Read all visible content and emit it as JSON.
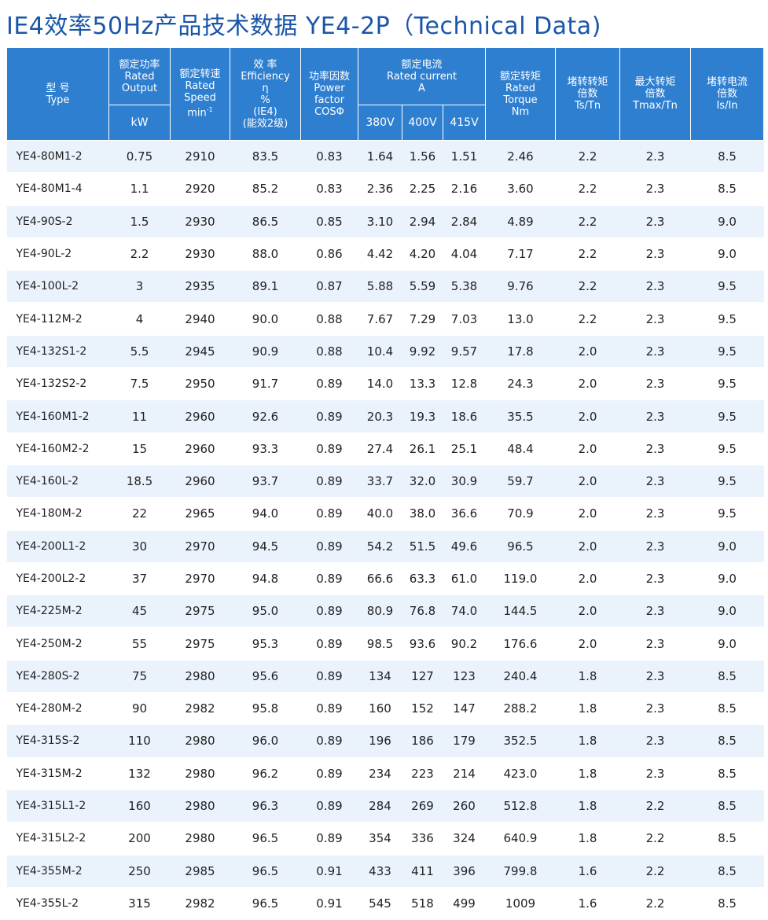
{
  "title": "IE4效率50Hz产品技术数据 YE4-2P（Technical Data)",
  "headers": {
    "type": [
      "型 号",
      "Type"
    ],
    "output": [
      "额定功率",
      "Rated",
      "Output"
    ],
    "output_unit": "kW",
    "speed": [
      "额定转速",
      "Rated",
      "Speed",
      "min"
    ],
    "speed_sup": "-1",
    "eff": [
      "效 率",
      "Efficiency",
      "η",
      "%",
      "(IE4)",
      "(能效2级)"
    ],
    "pf": [
      "功率因数",
      "Power",
      "factor",
      "COSΦ"
    ],
    "current": [
      "额定电流",
      "Rated current",
      "A"
    ],
    "volts": [
      "380V",
      "400V",
      "415V"
    ],
    "torque": [
      "额定转矩",
      "Rated",
      "Torque",
      "Nm"
    ],
    "locked_torque": [
      "堵转转矩",
      "倍数",
      "Ts/Tn"
    ],
    "max_torque": [
      "最大转矩",
      "倍数",
      "Tmax/Tn"
    ],
    "locked_current": [
      "堵转电流",
      "倍数",
      "Is/In"
    ]
  },
  "rows": [
    [
      "YE4-80M1-2",
      "0.75",
      "2910",
      "83.5",
      "0.83",
      "1.64",
      "1.56",
      "1.51",
      "2.46",
      "2.2",
      "2.3",
      "8.5"
    ],
    [
      "YE4-80M1-4",
      "1.1",
      "2920",
      "85.2",
      "0.83",
      "2.36",
      "2.25",
      "2.16",
      "3.60",
      "2.2",
      "2.3",
      "8.5"
    ],
    [
      "YE4-90S-2",
      "1.5",
      "2930",
      "86.5",
      "0.85",
      "3.10",
      "2.94",
      "2.84",
      "4.89",
      "2.2",
      "2.3",
      "9.0"
    ],
    [
      "YE4-90L-2",
      "2.2",
      "2930",
      "88.0",
      "0.86",
      "4.42",
      "4.20",
      "4.04",
      "7.17",
      "2.2",
      "2.3",
      "9.0"
    ],
    [
      "YE4-100L-2",
      "3",
      "2935",
      "89.1",
      "0.87",
      "5.88",
      "5.59",
      "5.38",
      "9.76",
      "2.2",
      "2.3",
      "9.5"
    ],
    [
      "YE4-112M-2",
      "4",
      "2940",
      "90.0",
      "0.88",
      "7.67",
      "7.29",
      "7.03",
      "13.0",
      "2.2",
      "2.3",
      "9.5"
    ],
    [
      "YE4-132S1-2",
      "5.5",
      "2945",
      "90.9",
      "0.88",
      "10.4",
      "9.92",
      "9.57",
      "17.8",
      "2.0",
      "2.3",
      "9.5"
    ],
    [
      "YE4-132S2-2",
      "7.5",
      "2950",
      "91.7",
      "0.89",
      "14.0",
      "13.3",
      "12.8",
      "24.3",
      "2.0",
      "2.3",
      "9.5"
    ],
    [
      "YE4-160M1-2",
      "11",
      "2960",
      "92.6",
      "0.89",
      "20.3",
      "19.3",
      "18.6",
      "35.5",
      "2.0",
      "2.3",
      "9.5"
    ],
    [
      "YE4-160M2-2",
      "15",
      "2960",
      "93.3",
      "0.89",
      "27.4",
      "26.1",
      "25.1",
      "48.4",
      "2.0",
      "2.3",
      "9.5"
    ],
    [
      "YE4-160L-2",
      "18.5",
      "2960",
      "93.7",
      "0.89",
      "33.7",
      "32.0",
      "30.9",
      "59.7",
      "2.0",
      "2.3",
      "9.5"
    ],
    [
      "YE4-180M-2",
      "22",
      "2965",
      "94.0",
      "0.89",
      "40.0",
      "38.0",
      "36.6",
      "70.9",
      "2.0",
      "2.3",
      "9.5"
    ],
    [
      "YE4-200L1-2",
      "30",
      "2970",
      "94.5",
      "0.89",
      "54.2",
      "51.5",
      "49.6",
      "96.5",
      "2.0",
      "2.3",
      "9.0"
    ],
    [
      "YE4-200L2-2",
      "37",
      "2970",
      "94.8",
      "0.89",
      "66.6",
      "63.3",
      "61.0",
      "119.0",
      "2.0",
      "2.3",
      "9.0"
    ],
    [
      "YE4-225M-2",
      "45",
      "2975",
      "95.0",
      "0.89",
      "80.9",
      "76.8",
      "74.0",
      "144.5",
      "2.0",
      "2.3",
      "9.0"
    ],
    [
      "YE4-250M-2",
      "55",
      "2975",
      "95.3",
      "0.89",
      "98.5",
      "93.6",
      "90.2",
      "176.6",
      "2.0",
      "2.3",
      "9.0"
    ],
    [
      "YE4-280S-2",
      "75",
      "2980",
      "95.6",
      "0.89",
      "134",
      "127",
      "123",
      "240.4",
      "1.8",
      "2.3",
      "8.5"
    ],
    [
      "YE4-280M-2",
      "90",
      "2982",
      "95.8",
      "0.89",
      "160",
      "152",
      "147",
      "288.2",
      "1.8",
      "2.3",
      "8.5"
    ],
    [
      "YE4-315S-2",
      "110",
      "2980",
      "96.0",
      "0.89",
      "196",
      "186",
      "179",
      "352.5",
      "1.8",
      "2.3",
      "8.5"
    ],
    [
      "YE4-315M-2",
      "132",
      "2980",
      "96.2",
      "0.89",
      "234",
      "223",
      "214",
      "423.0",
      "1.8",
      "2.3",
      "8.5"
    ],
    [
      "YE4-315L1-2",
      "160",
      "2980",
      "96.3",
      "0.89",
      "284",
      "269",
      "260",
      "512.8",
      "1.8",
      "2.2",
      "8.5"
    ],
    [
      "YE4-315L2-2",
      "200",
      "2980",
      "96.5",
      "0.89",
      "354",
      "336",
      "324",
      "640.9",
      "1.8",
      "2.2",
      "8.5"
    ],
    [
      "YE4-355M-2",
      "250",
      "2985",
      "96.5",
      "0.91",
      "433",
      "411",
      "396",
      "799.8",
      "1.6",
      "2.2",
      "8.5"
    ],
    [
      "YE4-355L-2",
      "315",
      "2982",
      "96.5",
      "0.91",
      "545",
      "518",
      "499",
      "1009",
      "1.6",
      "2.2",
      "8.5"
    ]
  ]
}
